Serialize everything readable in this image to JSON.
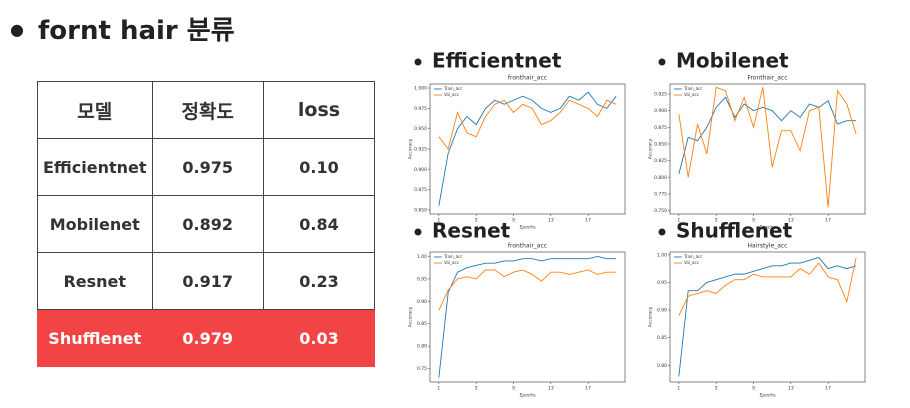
{
  "title": "fornt hair 분류",
  "table": {
    "header": [
      "모델",
      "정확도",
      "loss"
    ],
    "rows": [
      [
        "Efficientnet",
        "0.975",
        "0.10"
      ],
      [
        "Mobilenet",
        "0.892",
        "0.84"
      ],
      [
        "Resnet",
        "0.917",
        "0.23"
      ],
      [
        "Shufflenet",
        "0.979",
        "0.03"
      ]
    ]
  },
  "chart_data": [
    {
      "type": "line",
      "heading": "Efficientnet",
      "title": "fronthair_acc",
      "xlabel": "Epochs",
      "ylabel": "Accuracy",
      "x": [
        1,
        2,
        3,
        4,
        5,
        6,
        7,
        8,
        9,
        10,
        11,
        12,
        13,
        14,
        15,
        16,
        17,
        18,
        19,
        20
      ],
      "xlim": [
        0.05,
        20.95
      ],
      "xticks": [
        1,
        5,
        9,
        13,
        17
      ],
      "ylim": [
        0.845,
        1.005
      ],
      "yticks": [
        {
          "value": 0.85,
          "label": "0.850"
        },
        {
          "value": 0.875,
          "label": "0.875"
        },
        {
          "value": 0.9,
          "label": "0.900"
        },
        {
          "value": 0.925,
          "label": "0.925"
        },
        {
          "value": 0.95,
          "label": "0.950"
        },
        {
          "value": 0.975,
          "label": "0.975"
        },
        {
          "value": 1.0,
          "label": "1.000"
        }
      ],
      "series": [
        {
          "name": "Train_acc",
          "color": "#1f77b4",
          "values": [
            0.855,
            0.92,
            0.95,
            0.965,
            0.955,
            0.975,
            0.985,
            0.98,
            0.985,
            0.99,
            0.985,
            0.975,
            0.97,
            0.975,
            0.99,
            0.985,
            0.995,
            0.98,
            0.975,
            0.99
          ]
        },
        {
          "name": "Val_acc",
          "color": "#ff7f0e",
          "values": [
            0.94,
            0.925,
            0.97,
            0.945,
            0.94,
            0.965,
            0.98,
            0.985,
            0.97,
            0.98,
            0.975,
            0.955,
            0.96,
            0.97,
            0.985,
            0.98,
            0.975,
            0.965,
            0.985,
            0.98
          ]
        }
      ]
    },
    {
      "type": "line",
      "heading": "Mobilenet",
      "title": "Fronthair_acc",
      "xlabel": "Epochs",
      "ylabel": "Accuracy",
      "x": [
        1,
        2,
        3,
        4,
        5,
        6,
        7,
        8,
        9,
        10,
        11,
        12,
        13,
        14,
        15,
        16,
        17,
        18,
        19,
        20
      ],
      "xlim": [
        0.05,
        20.95
      ],
      "xticks": [
        1,
        5,
        9,
        13,
        17
      ],
      "ylim": [
        0.745,
        0.94
      ],
      "yticks": [
        {
          "value": 0.75,
          "label": "0.750"
        },
        0.775,
        {
          "value": 0.8,
          "label": "0.800"
        },
        0.825,
        {
          "value": 0.85,
          "label": "0.850"
        },
        0.875,
        {
          "value": 0.9,
          "label": "0.900"
        },
        0.925
      ],
      "series": [
        {
          "name": "Train_acc",
          "color": "#1f77b4",
          "values": [
            0.805,
            0.86,
            0.855,
            0.875,
            0.905,
            0.92,
            0.89,
            0.91,
            0.9,
            0.905,
            0.9,
            0.885,
            0.9,
            0.89,
            0.91,
            0.905,
            0.915,
            0.88,
            0.885,
            0.885
          ]
        },
        {
          "name": "Val_acc",
          "color": "#ff7f0e",
          "values": [
            0.895,
            0.8,
            0.88,
            0.835,
            0.935,
            0.93,
            0.885,
            0.92,
            0.875,
            0.935,
            0.815,
            0.87,
            0.87,
            0.84,
            0.9,
            0.905,
            0.755,
            0.93,
            0.91,
            0.865
          ]
        }
      ]
    },
    {
      "type": "line",
      "heading": "Resnet",
      "title": "fronthair_acc",
      "xlabel": "Epochs",
      "ylabel": "Accuracy",
      "x": [
        1,
        2,
        3,
        4,
        5,
        6,
        7,
        8,
        9,
        10,
        11,
        12,
        13,
        14,
        15,
        16,
        17,
        18,
        19,
        20
      ],
      "xlim": [
        0.05,
        20.95
      ],
      "xticks": [
        1,
        5,
        9,
        13,
        17
      ],
      "ylim": [
        0.72,
        1.01
      ],
      "yticks": [
        0.75,
        {
          "value": 0.8,
          "label": "0.80"
        },
        0.85,
        {
          "value": 0.9,
          "label": "0.90"
        },
        0.95,
        {
          "value": 1.0,
          "label": "1.00"
        }
      ],
      "series": [
        {
          "name": "Train_acc",
          "color": "#1f77b4",
          "values": [
            0.73,
            0.92,
            0.965,
            0.975,
            0.98,
            0.985,
            0.985,
            0.99,
            0.99,
            0.995,
            0.995,
            0.99,
            0.995,
            0.995,
            0.995,
            0.995,
            0.995,
            1.0,
            0.995,
            0.995
          ]
        },
        {
          "name": "Val_acc",
          "color": "#ff7f0e",
          "values": [
            0.88,
            0.925,
            0.95,
            0.955,
            0.95,
            0.97,
            0.97,
            0.955,
            0.965,
            0.97,
            0.96,
            0.945,
            0.965,
            0.965,
            0.96,
            0.965,
            0.97,
            0.96,
            0.965,
            0.965
          ]
        }
      ]
    },
    {
      "type": "line",
      "heading": "Shufflenet",
      "title": "Hairstyle_acc",
      "xlabel": "Epochs",
      "ylabel": "Accuracy",
      "x": [
        1,
        2,
        3,
        4,
        5,
        6,
        7,
        8,
        9,
        10,
        11,
        12,
        13,
        14,
        15,
        16,
        17,
        18,
        19,
        20
      ],
      "xlim": [
        0.05,
        20.95
      ],
      "xticks": [
        1,
        5,
        9,
        13,
        17
      ],
      "ylim": [
        0.77,
        1.005
      ],
      "yticks": [
        {
          "value": 0.8,
          "label": "0.80"
        },
        0.85,
        {
          "value": 0.9,
          "label": "0.90"
        },
        0.95,
        {
          "value": 1.0,
          "label": "1.00"
        }
      ],
      "series": [
        {
          "name": "Train_acc",
          "color": "#1f77b4",
          "values": [
            0.78,
            0.935,
            0.935,
            0.95,
            0.955,
            0.96,
            0.965,
            0.965,
            0.97,
            0.975,
            0.98,
            0.98,
            0.985,
            0.985,
            0.99,
            0.995,
            0.975,
            0.98,
            0.975,
            0.98
          ]
        },
        {
          "name": "Val_acc",
          "color": "#ff7f0e",
          "values": [
            0.89,
            0.925,
            0.93,
            0.935,
            0.93,
            0.945,
            0.955,
            0.955,
            0.965,
            0.96,
            0.96,
            0.96,
            0.96,
            0.975,
            0.965,
            0.985,
            0.96,
            0.955,
            0.915,
            0.995
          ]
        }
      ]
    }
  ]
}
